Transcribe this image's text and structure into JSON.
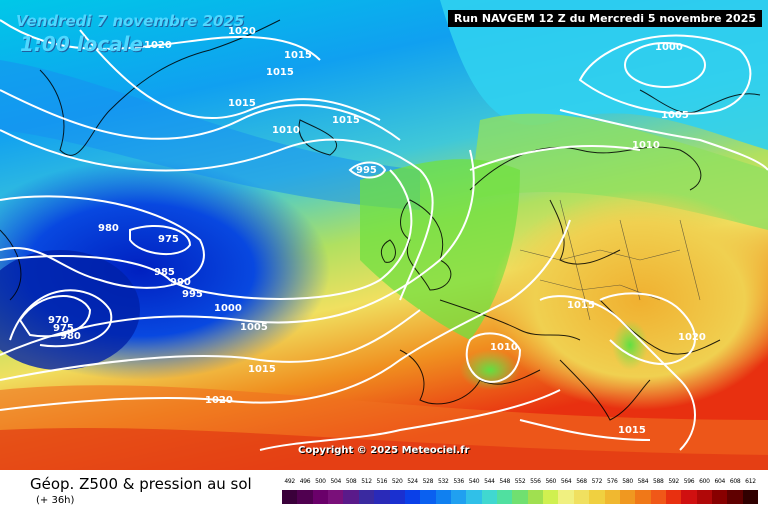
{
  "map": {
    "title": "Vendredi 7 novembre 2025",
    "subtitle": "1:00 locale",
    "run_label": "Run NAVGEM 12 Z du Mercredi 5 novembre 2025",
    "copyright": "Copyright © 2025 Meteociel.fr"
  },
  "isobar_labels": [
    {
      "value": "1020",
      "id": "a"
    },
    {
      "value": "1020",
      "id": "b"
    },
    {
      "value": "1015",
      "id": "c"
    },
    {
      "value": "1015",
      "id": "d"
    },
    {
      "value": "1015",
      "id": "e"
    },
    {
      "value": "1010",
      "id": "f"
    },
    {
      "value": "1015",
      "id": "g"
    },
    {
      "value": "995",
      "id": "h"
    },
    {
      "value": "980",
      "id": "i"
    },
    {
      "value": "975",
      "id": "j"
    },
    {
      "value": "985",
      "id": "k"
    },
    {
      "value": "990",
      "id": "l"
    },
    {
      "value": "995",
      "id": "m"
    },
    {
      "value": "1000",
      "id": "n"
    },
    {
      "value": "970",
      "id": "o"
    },
    {
      "value": "975",
      "id": "p"
    },
    {
      "value": "980",
      "id": "q"
    },
    {
      "value": "1005",
      "id": "r"
    },
    {
      "value": "1015",
      "id": "s"
    },
    {
      "value": "1020",
      "id": "t"
    },
    {
      "value": "1000",
      "id": "u"
    },
    {
      "value": "1005",
      "id": "v"
    },
    {
      "value": "1010",
      "id": "w"
    },
    {
      "value": "1015",
      "id": "x"
    },
    {
      "value": "1010",
      "id": "y"
    },
    {
      "value": "1020",
      "id": "z"
    },
    {
      "value": "1015",
      "id": "aa"
    }
  ],
  "legend": {
    "title": "Géop. Z500 & pression au sol",
    "hours": "(+ 36h)",
    "scale_values": [
      "492",
      "496",
      "500",
      "504",
      "508",
      "512",
      "516",
      "520",
      "524",
      "528",
      "532",
      "536",
      "540",
      "544",
      "548",
      "552",
      "556",
      "560",
      "564",
      "568",
      "572",
      "576",
      "580",
      "584",
      "588",
      "592",
      "596",
      "600",
      "604",
      "608",
      "612"
    ],
    "scale_colors": [
      "#3a003a",
      "#500050",
      "#6a006a",
      "#7a107a",
      "#5a1a8a",
      "#3a2aa0",
      "#2a2ab8",
      "#1a30d0",
      "#0a40e8",
      "#0a60f0",
      "#1080f0",
      "#20a0f0",
      "#30c0e8",
      "#40d8d0",
      "#50e0a0",
      "#70e070",
      "#a0e050",
      "#d0f050",
      "#f0f080",
      "#f0e060",
      "#f0d040",
      "#f0b830",
      "#f09820",
      "#f07818",
      "#f05818",
      "#e83010",
      "#d01010",
      "#b00808",
      "#880000",
      "#600000",
      "#300000"
    ]
  }
}
